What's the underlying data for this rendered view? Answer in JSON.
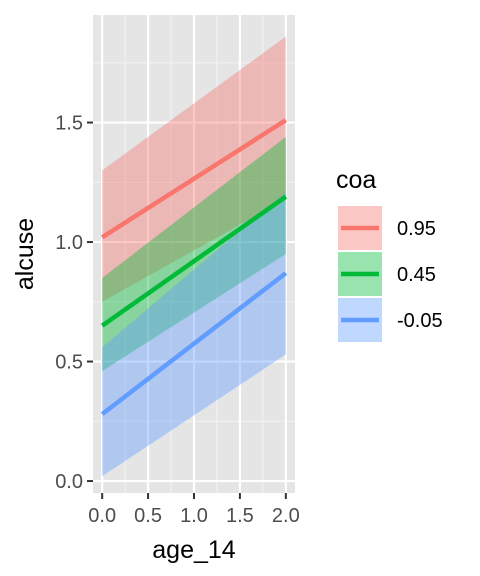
{
  "chart_data": {
    "type": "line",
    "title": "",
    "xlabel": "age_14",
    "ylabel": "alcuse",
    "xlim": [
      -0.1,
      2.1
    ],
    "ylim": [
      -0.05,
      1.95
    ],
    "x_ticks": [
      0.0,
      0.5,
      1.0,
      1.5,
      2.0
    ],
    "x_tick_labels": [
      "0.0",
      "0.5",
      "1.0",
      "1.5",
      "2.0"
    ],
    "y_ticks": [
      0.0,
      0.5,
      1.0,
      1.5
    ],
    "y_tick_labels": [
      "0.0",
      "0.5",
      "1.0",
      "1.5"
    ],
    "grid": true,
    "panel_background": "#e5e5e5",
    "legend": {
      "title": "coa",
      "position": "right"
    },
    "series": [
      {
        "name": "0.95",
        "color": "#f8766d",
        "x": [
          0,
          2
        ],
        "y": [
          1.02,
          1.51
        ],
        "ymin": [
          0.75,
          1.18
        ],
        "ymax": [
          1.3,
          1.86
        ]
      },
      {
        "name": "0.45",
        "color": "#00ba38",
        "x": [
          0,
          2
        ],
        "y": [
          0.65,
          1.19
        ],
        "ymin": [
          0.46,
          0.95
        ],
        "ymax": [
          0.85,
          1.44
        ]
      },
      {
        "name": "-0.05",
        "color": "#619cff",
        "x": [
          0,
          2
        ],
        "y": [
          0.28,
          0.87
        ],
        "ymin": [
          0.02,
          0.53
        ],
        "ymax": [
          0.56,
          1.21
        ]
      }
    ]
  }
}
